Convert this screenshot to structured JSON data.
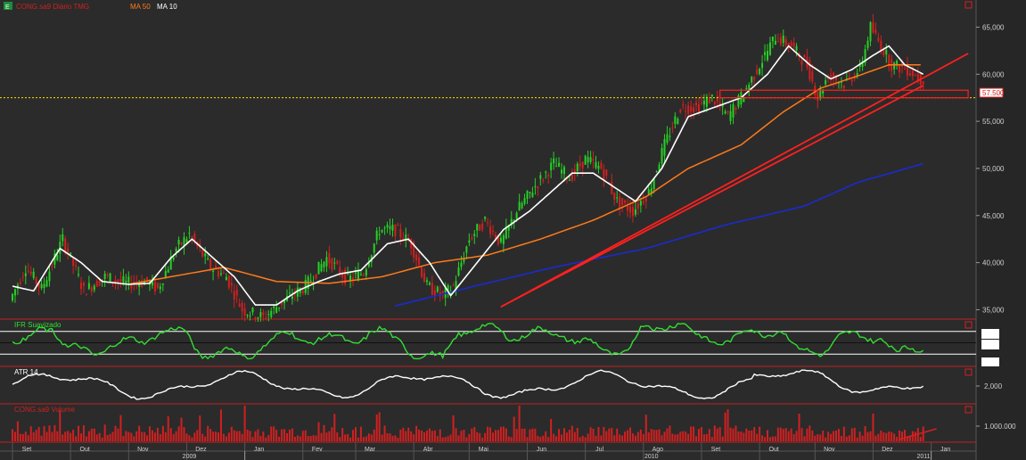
{
  "header": {
    "symbol_label": "CONG.sa9 Diário TMG",
    "ma_labels": [
      "",
      "MA 50",
      "MA 10"
    ]
  },
  "indicator_labels": {
    "ifr": "IFR Suavizado",
    "atr": "ATR 14",
    "volume": "CONG.sa9 Volume"
  },
  "price_marker": "57.500",
  "colors": {
    "background": "#2b2b2b",
    "up": "#26d026",
    "down": "#d02020",
    "ma10": "#ffffff",
    "ma50": "#ff7a1a",
    "ma200": "#1a2bd0",
    "trendline": "#ff2020",
    "pivot": "#ffe100",
    "ifr": "#33dd33",
    "grid": "#3a3a3a",
    "axis_text": "#cfcfcf",
    "separator": "#c02020"
  },
  "chart_data": {
    "type": "candlestick",
    "price_axis": {
      "range": [
        34000,
        67500
      ],
      "ticks": [
        {
          "value": 35000,
          "label": "35,000"
        },
        {
          "value": 40000,
          "label": "40,000"
        },
        {
          "value": 45000,
          "label": "45,000"
        },
        {
          "value": 50000,
          "label": "50,000"
        },
        {
          "value": 55000,
          "label": "55,000"
        },
        {
          "value": 60000,
          "label": "60,000"
        },
        {
          "value": 65000,
          "label": "65,000"
        }
      ]
    },
    "time_axis": {
      "months": [
        "Set",
        "Out",
        "Nov",
        "Dez",
        "Jan",
        "Fev",
        "Mar",
        "Abr",
        "Mai",
        "Jun",
        "Jul",
        "Ago",
        "Set",
        "Out",
        "Nov",
        "Dez",
        "Jan"
      ],
      "years": [
        "2009",
        "2010",
        "2011"
      ]
    },
    "pivot_level": 57500,
    "price_path": [
      [
        0,
        36000
      ],
      [
        6,
        39500
      ],
      [
        12,
        37200
      ],
      [
        20,
        42500
      ],
      [
        28,
        37000
      ],
      [
        36,
        38500
      ],
      [
        44,
        37800
      ],
      [
        52,
        38000
      ],
      [
        56,
        37200
      ],
      [
        63,
        41500
      ],
      [
        68,
        43000
      ],
      [
        76,
        39500
      ],
      [
        82,
        38500
      ],
      [
        88,
        35000
      ],
      [
        96,
        34200
      ],
      [
        104,
        36000
      ],
      [
        112,
        37500
      ],
      [
        120,
        40500
      ],
      [
        128,
        38200
      ],
      [
        134,
        39000
      ],
      [
        140,
        43500
      ],
      [
        146,
        43500
      ],
      [
        152,
        42000
      ],
      [
        158,
        37500
      ],
      [
        164,
        36500
      ],
      [
        168,
        37500
      ],
      [
        174,
        42500
      ],
      [
        180,
        44500
      ],
      [
        186,
        42000
      ],
      [
        192,
        45500
      ],
      [
        200,
        48500
      ],
      [
        206,
        50500
      ],
      [
        212,
        49000
      ],
      [
        218,
        51000
      ],
      [
        224,
        50000
      ],
      [
        230,
        46500
      ],
      [
        236,
        45500
      ],
      [
        242,
        47500
      ],
      [
        248,
        52500
      ],
      [
        254,
        56500
      ],
      [
        260,
        56500
      ],
      [
        266,
        57500
      ],
      [
        272,
        55500
      ],
      [
        278,
        58000
      ],
      [
        284,
        61000
      ],
      [
        290,
        64000
      ],
      [
        296,
        63000
      ],
      [
        302,
        61000
      ],
      [
        306,
        57500
      ],
      [
        310,
        60000
      ],
      [
        316,
        59000
      ],
      [
        322,
        60500
      ],
      [
        326,
        65000
      ],
      [
        330,
        63000
      ],
      [
        334,
        61000
      ],
      [
        340,
        60500
      ],
      [
        345,
        59500
      ]
    ],
    "ma10_path": [
      [
        0,
        37500
      ],
      [
        8,
        37000
      ],
      [
        18,
        41500
      ],
      [
        26,
        40000
      ],
      [
        34,
        38000
      ],
      [
        44,
        37700
      ],
      [
        52,
        37800
      ],
      [
        60,
        40500
      ],
      [
        68,
        42500
      ],
      [
        76,
        40500
      ],
      [
        84,
        38500
      ],
      [
        92,
        35500
      ],
      [
        100,
        35500
      ],
      [
        108,
        37000
      ],
      [
        116,
        38000
      ],
      [
        124,
        38800
      ],
      [
        132,
        39200
      ],
      [
        142,
        42000
      ],
      [
        150,
        42500
      ],
      [
        158,
        40000
      ],
      [
        166,
        36500
      ],
      [
        176,
        40000
      ],
      [
        186,
        43500
      ],
      [
        196,
        45500
      ],
      [
        204,
        47500
      ],
      [
        212,
        49500
      ],
      [
        220,
        49500
      ],
      [
        228,
        48000
      ],
      [
        236,
        46500
      ],
      [
        246,
        50000
      ],
      [
        256,
        55500
      ],
      [
        266,
        56500
      ],
      [
        276,
        57500
      ],
      [
        286,
        60000
      ],
      [
        294,
        63000
      ],
      [
        302,
        61000
      ],
      [
        310,
        59500
      ],
      [
        318,
        60500
      ],
      [
        326,
        62000
      ],
      [
        332,
        63000
      ],
      [
        338,
        61000
      ],
      [
        345,
        60000
      ]
    ],
    "ma50_path": [
      [
        44,
        37700
      ],
      [
        60,
        38500
      ],
      [
        80,
        39500
      ],
      [
        100,
        38000
      ],
      [
        120,
        37800
      ],
      [
        140,
        38500
      ],
      [
        160,
        40000
      ],
      [
        180,
        40800
      ],
      [
        200,
        42500
      ],
      [
        220,
        44500
      ],
      [
        240,
        47000
      ],
      [
        256,
        50000
      ],
      [
        276,
        52500
      ],
      [
        292,
        56000
      ],
      [
        306,
        58500
      ],
      [
        320,
        59800
      ],
      [
        332,
        61000
      ],
      [
        345,
        61000
      ]
    ],
    "ma200_path": [
      [
        145,
        35400
      ],
      [
        175,
        37500
      ],
      [
        205,
        39500
      ],
      [
        240,
        41500
      ],
      [
        270,
        44000
      ],
      [
        300,
        46000
      ],
      [
        320,
        48500
      ],
      [
        345,
        50500
      ]
    ],
    "trendlines": [
      {
        "from": [
          185,
          35300
        ],
        "to": [
          362,
          62200
        ]
      },
      {
        "from": [
          185,
          35300
        ],
        "to": [
          345,
          58800
        ]
      }
    ],
    "rect_zone": {
      "from_index": 268,
      "to_index": 362,
      "range": [
        57500,
        58300
      ]
    },
    "indicators": {
      "ifr": {
        "levels": [
          70,
          30
        ],
        "range": [
          10,
          90
        ],
        "right_box_labels": [
          "",
          ""
        ]
      },
      "atr": {
        "tick": {
          "value": 2000,
          "label": "2,000"
        }
      },
      "volume": {
        "tick": {
          "value": 1000000,
          "label": "1.000.000"
        }
      }
    }
  }
}
